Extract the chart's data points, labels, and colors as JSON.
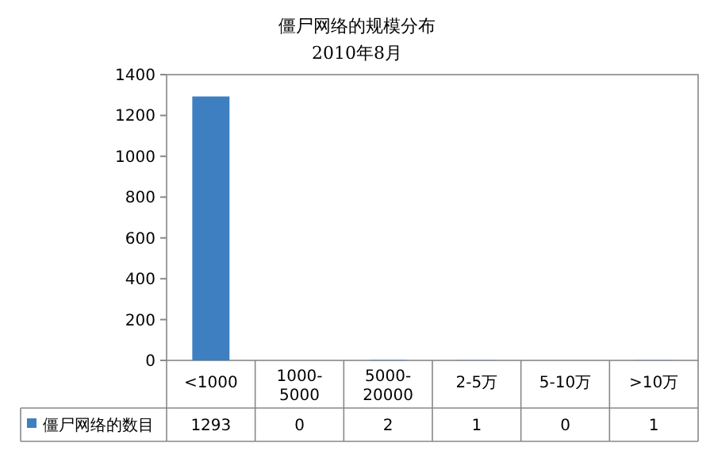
{
  "chart_data": {
    "type": "bar",
    "title": "僵尸网络的规模分布",
    "subtitle": "2010年8月",
    "categories": [
      "<1000",
      "1000-5000",
      "5000-20000",
      "2-5万",
      "5-10万",
      ">10万"
    ],
    "series": [
      {
        "name": "僵尸网络的数目",
        "color": "#3d7fc1",
        "values": [
          1293,
          0,
          2,
          1,
          0,
          1
        ]
      }
    ],
    "ylim": [
      0,
      1400
    ],
    "yticks": [
      0,
      200,
      400,
      600,
      800,
      1000,
      1200,
      1400
    ],
    "data_labels": true,
    "legend": "bottom left"
  }
}
